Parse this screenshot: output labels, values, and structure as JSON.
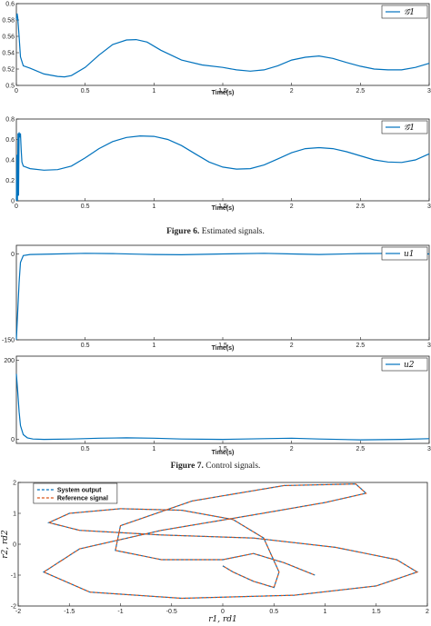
{
  "captions": {
    "fig6_label": "Figure 6.",
    "fig6_text": "Estimated signals.",
    "fig7_label": "Figure 7.",
    "fig7_text": "Control signals."
  },
  "colors": {
    "series": "#0072BD",
    "reference": "#D95319"
  },
  "chart_data": [
    {
      "type": "line",
      "title": "",
      "xlabel": "Time(s)",
      "ylabel": "",
      "legend": [
        "𝒢̂1"
      ],
      "legend_position": "top-right",
      "xlim": [
        0,
        3
      ],
      "ylim": [
        0.5,
        0.6
      ],
      "xticks": [
        0,
        0.5,
        1,
        1.5,
        2,
        2.5,
        3
      ],
      "xtick_labels": [
        "0",
        "0.5",
        "1",
        "1.5",
        "2",
        "2.5",
        "3"
      ],
      "yticks": [
        0.5,
        0.52,
        0.54,
        0.56,
        0.58,
        0.6
      ],
      "ytick_labels": [
        "0.5",
        "0.52",
        "0.54",
        "0.56",
        "0.58",
        "0.6"
      ],
      "grid": false,
      "series": [
        {
          "name": "𝒢̂1",
          "x": [
            0,
            0.005,
            0.01,
            0.02,
            0.03,
            0.05,
            0.1,
            0.2,
            0.3,
            0.35,
            0.4,
            0.5,
            0.6,
            0.7,
            0.8,
            0.87,
            0.95,
            1.05,
            1.2,
            1.35,
            1.5,
            1.6,
            1.7,
            1.8,
            1.9,
            2.0,
            2.1,
            2.2,
            2.3,
            2.4,
            2.5,
            2.6,
            2.7,
            2.8,
            2.9,
            3.0
          ],
          "y": [
            0.58,
            0.588,
            0.583,
            0.56,
            0.535,
            0.524,
            0.521,
            0.514,
            0.511,
            0.5105,
            0.512,
            0.522,
            0.537,
            0.55,
            0.5555,
            0.556,
            0.553,
            0.543,
            0.531,
            0.525,
            0.522,
            0.519,
            0.5175,
            0.519,
            0.524,
            0.531,
            0.5345,
            0.536,
            0.533,
            0.528,
            0.5235,
            0.52,
            0.519,
            0.519,
            0.522,
            0.527
          ]
        }
      ]
    },
    {
      "type": "line",
      "title": "",
      "xlabel": "Time(s)",
      "ylabel": "",
      "legend": [
        "𝒢̂1"
      ],
      "legend_position": "top-right",
      "xlim": [
        0,
        3
      ],
      "ylim": [
        0,
        0.8
      ],
      "xticks": [
        0,
        0.5,
        1,
        1.5,
        2,
        2.5,
        3
      ],
      "xtick_labels": [
        "0",
        "0.5",
        "1",
        "1.5",
        "2",
        "2.5",
        "3"
      ],
      "yticks": [
        0,
        0.2,
        0.4,
        0.6,
        0.8
      ],
      "ytick_labels": [
        "0",
        "0.2",
        "0.4",
        "0.6",
        "0.8"
      ],
      "grid": false,
      "series": [
        {
          "name": "𝒢̂1",
          "x": [
            0,
            0.004,
            0.008,
            0.012,
            0.016,
            0.02,
            0.025,
            0.03,
            0.035,
            0.04,
            0.05,
            0.07,
            0.1,
            0.2,
            0.3,
            0.4,
            0.5,
            0.6,
            0.7,
            0.8,
            0.9,
            1.0,
            1.1,
            1.2,
            1.3,
            1.4,
            1.5,
            1.6,
            1.7,
            1.8,
            1.9,
            2.0,
            2.1,
            2.2,
            2.3,
            2.4,
            2.5,
            2.6,
            2.7,
            2.8,
            2.9,
            3.0
          ],
          "y": [
            0.0,
            0.45,
            0.0,
            0.66,
            0.05,
            0.67,
            0.62,
            0.66,
            0.5,
            0.38,
            0.34,
            0.33,
            0.315,
            0.3,
            0.305,
            0.34,
            0.42,
            0.51,
            0.58,
            0.62,
            0.635,
            0.63,
            0.6,
            0.54,
            0.46,
            0.38,
            0.33,
            0.31,
            0.315,
            0.35,
            0.41,
            0.47,
            0.51,
            0.52,
            0.51,
            0.48,
            0.44,
            0.4,
            0.38,
            0.375,
            0.4,
            0.46
          ]
        }
      ]
    },
    {
      "type": "line",
      "title": "",
      "xlabel": "Time(s)",
      "ylabel": "",
      "legend": [
        "u1"
      ],
      "legend_position": "top-right",
      "xlim": [
        0,
        3
      ],
      "ylim": [
        -150,
        15
      ],
      "xticks": [
        0.5,
        1,
        1.5,
        2,
        2.5,
        3
      ],
      "xtick_labels": [
        "0.5",
        "1",
        "1.5",
        "2",
        "2.5",
        "3"
      ],
      "yticks": [
        -150,
        0
      ],
      "ytick_labels": [
        "-150",
        "0"
      ],
      "grid": false,
      "series": [
        {
          "name": "u1",
          "x": [
            0,
            0.01,
            0.02,
            0.03,
            0.05,
            0.1,
            0.3,
            0.5,
            0.7,
            0.9,
            1.0,
            1.2,
            1.5,
            1.8,
            2.0,
            2.2,
            2.5,
            2.8,
            3.0
          ],
          "y": [
            -150,
            -100,
            -50,
            -15,
            -3,
            -1,
            0,
            1,
            0.5,
            -0.5,
            -1,
            -1.5,
            0,
            1,
            0,
            -1,
            0.5,
            1,
            0
          ]
        }
      ]
    },
    {
      "type": "line",
      "title": "",
      "xlabel": "Time(s)",
      "ylabel": "",
      "legend": [
        "u2"
      ],
      "legend_position": "top-right",
      "xlim": [
        0,
        3
      ],
      "ylim": [
        -10,
        210
      ],
      "xticks": [
        0.5,
        1,
        1.5,
        2,
        2.5,
        3
      ],
      "xtick_labels": [
        "0.5",
        "1",
        "1.5",
        "2",
        "2.5",
        "3"
      ],
      "yticks": [
        0,
        200
      ],
      "ytick_labels": [
        "0",
        "200"
      ],
      "grid": false,
      "series": [
        {
          "name": "u2",
          "x": [
            0,
            0.01,
            0.02,
            0.03,
            0.05,
            0.08,
            0.12,
            0.2,
            0.4,
            0.6,
            0.8,
            1.0,
            1.2,
            1.5,
            1.8,
            2.0,
            2.2,
            2.5,
            2.8,
            3.0
          ],
          "y": [
            165,
            120,
            70,
            35,
            12,
            4,
            1,
            0,
            1,
            3,
            4,
            3,
            1,
            0,
            2,
            3,
            1,
            -1,
            0,
            2
          ]
        }
      ]
    },
    {
      "type": "line",
      "title": "",
      "xlabel": "r1, rd1",
      "ylabel": "r2, rd2",
      "legend": [
        "System output",
        "Reference signal"
      ],
      "legend_position": "top-left",
      "xlim": [
        -2,
        2
      ],
      "ylim": [
        -2,
        2
      ],
      "xticks": [
        -2,
        -1.5,
        -1,
        -0.5,
        0,
        0.5,
        1,
        1.5,
        2
      ],
      "xtick_labels": [
        "-2",
        "-1.5",
        "-1",
        "-0.5",
        "0",
        "0.5",
        "1",
        "1.5",
        "2"
      ],
      "yticks": [
        -2,
        -1,
        0,
        1,
        2
      ],
      "ytick_labels": [
        "-2",
        "-1",
        "0",
        "1",
        "2"
      ],
      "grid": false,
      "series": [
        {
          "name": "System output",
          "style": "dashed",
          "x": [
            0.0,
            0.1,
            0.3,
            0.5,
            0.55,
            0.4,
            0.1,
            -0.4,
            -1.0,
            -1.5,
            -1.7,
            -1.4,
            -0.6,
            0.3,
            1.1,
            1.7,
            1.9,
            1.5,
            0.7,
            -0.4,
            -1.3,
            -1.75,
            -1.4,
            -0.6,
            0.3,
            1.0,
            1.4,
            1.3,
            0.6,
            -0.3,
            -1.0,
            -1.05,
            -0.6,
            0.0,
            0.3,
            0.6,
            0.9
          ],
          "y": [
            -0.7,
            -0.9,
            -1.2,
            -1.4,
            -0.9,
            0.2,
            0.8,
            1.1,
            1.15,
            1.0,
            0.7,
            0.45,
            0.3,
            0.2,
            -0.1,
            -0.5,
            -0.9,
            -1.35,
            -1.65,
            -1.75,
            -1.55,
            -0.9,
            -0.15,
            0.45,
            0.95,
            1.35,
            1.65,
            1.95,
            1.9,
            1.4,
            0.6,
            -0.2,
            -0.5,
            -0.5,
            -0.3,
            -0.6,
            -1.0
          ]
        },
        {
          "name": "Reference signal",
          "style": "dashed",
          "x": [
            0.0,
            0.1,
            0.3,
            0.5,
            0.55,
            0.4,
            0.1,
            -0.4,
            -1.0,
            -1.5,
            -1.7,
            -1.4,
            -0.6,
            0.3,
            1.1,
            1.7,
            1.9,
            1.5,
            0.7,
            -0.4,
            -1.3,
            -1.75,
            -1.4,
            -0.6,
            0.3,
            1.0,
            1.4,
            1.3,
            0.6,
            -0.3,
            -1.0,
            -1.05,
            -0.6,
            0.0,
            0.3,
            0.6,
            0.9
          ],
          "y": [
            -0.7,
            -0.9,
            -1.2,
            -1.4,
            -0.9,
            0.2,
            0.8,
            1.1,
            1.15,
            1.0,
            0.7,
            0.45,
            0.3,
            0.2,
            -0.1,
            -0.5,
            -0.9,
            -1.35,
            -1.65,
            -1.75,
            -1.55,
            -0.9,
            -0.15,
            0.45,
            0.95,
            1.35,
            1.65,
            1.95,
            1.9,
            1.4,
            0.6,
            -0.2,
            -0.5,
            -0.5,
            -0.3,
            -0.6,
            -1.0
          ]
        }
      ]
    }
  ]
}
